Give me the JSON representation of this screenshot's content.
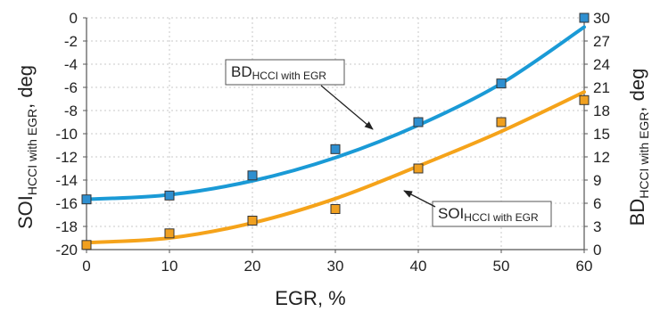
{
  "chart_data": {
    "type": "scatter",
    "x": [
      0,
      10,
      20,
      30,
      40,
      50,
      60
    ],
    "xlabel": "EGR, %",
    "xlim": [
      0,
      60
    ],
    "xticks": [
      0,
      10,
      20,
      30,
      40,
      50,
      60
    ],
    "y_left": {
      "label_main": "SOI",
      "label_sub": "HCCI with EGR",
      "label_unit": ", deg",
      "lim": [
        -20,
        0
      ],
      "ticks": [
        -20,
        -18,
        -16,
        -14,
        -12,
        -10,
        -8,
        -6,
        -4,
        -2,
        0
      ]
    },
    "y_right": {
      "label_main": "BD",
      "label_sub": "HCCI with EGR",
      "label_unit": ", deg",
      "lim": [
        0,
        30
      ],
      "ticks": [
        0,
        3,
        6,
        9,
        12,
        15,
        18,
        21,
        24,
        27,
        30
      ]
    },
    "grid": true,
    "series": [
      {
        "axis": "right",
        "label_main": "BD",
        "label_sub": "HCCI with EGR",
        "color": "#1a9ad6",
        "marker_color": "#2e8fd0",
        "values": [
          6.5,
          7.0,
          9.6,
          13.0,
          16.5,
          21.5,
          30.0
        ],
        "fit": [
          6.5,
          7.1,
          8.9,
          11.9,
          16.1,
          21.5,
          28.8
        ]
      },
      {
        "axis": "left",
        "label_main": "SOI",
        "label_sub": "HCCI with EGR",
        "color": "#f5a31a",
        "marker_color": "#f0a020",
        "values": [
          -19.6,
          -18.6,
          -17.5,
          -16.5,
          -13.0,
          -9.0,
          -7.1
        ],
        "fit": [
          -19.4,
          -19.0,
          -17.7,
          -15.6,
          -12.8,
          -9.8,
          -6.4
        ]
      }
    ]
  }
}
